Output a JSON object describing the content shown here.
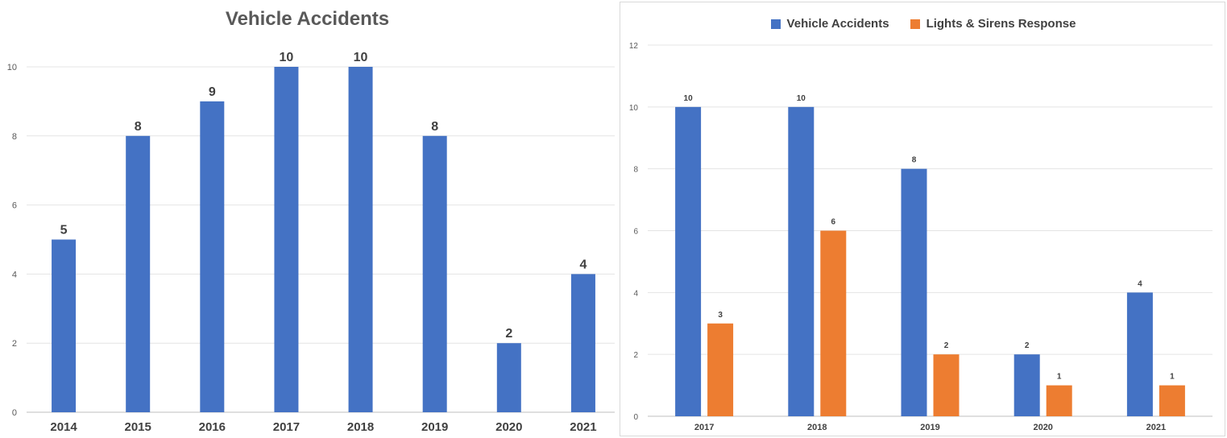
{
  "colors": {
    "blue": "#4472C4",
    "orange": "#ED7D31",
    "grid": "#e4e4e4",
    "axis_text": "#595959",
    "label_text": "#404040"
  },
  "chart_data": [
    {
      "type": "bar",
      "title": "Vehicle Accidents",
      "categories": [
        "2014",
        "2015",
        "2016",
        "2017",
        "2018",
        "2019",
        "2020",
        "2021"
      ],
      "series": [
        {
          "values": [
            5,
            8,
            9,
            10,
            10,
            8,
            2,
            4
          ],
          "color": "#4472C4"
        }
      ],
      "ylim": [
        0,
        10
      ],
      "yticks": [
        0,
        2,
        4,
        6,
        8,
        10
      ],
      "grid": true,
      "data_labels": true
    },
    {
      "type": "bar",
      "title": "",
      "categories": [
        "2017",
        "2018",
        "2019",
        "2020",
        "2021"
      ],
      "series": [
        {
          "name": "Vehicle Accidents",
          "values": [
            10,
            10,
            8,
            2,
            4
          ],
          "color": "#4472C4"
        },
        {
          "name": "Lights & Sirens Response",
          "values": [
            3,
            6,
            2,
            1,
            1
          ],
          "color": "#ED7D31"
        }
      ],
      "ylim": [
        0,
        12
      ],
      "yticks": [
        0,
        2,
        4,
        6,
        8,
        10,
        12
      ],
      "grid": true,
      "legend": "top-center",
      "data_labels": true
    }
  ]
}
